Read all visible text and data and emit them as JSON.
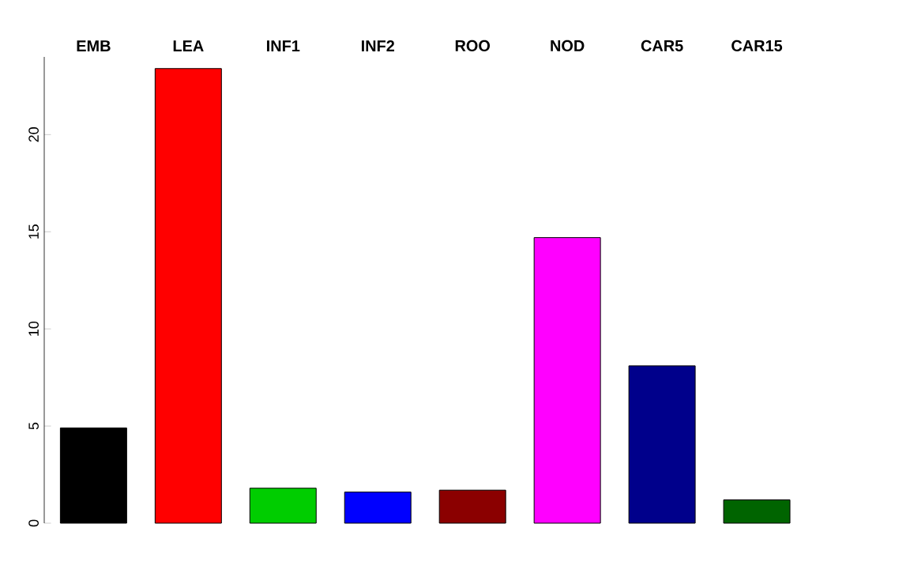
{
  "chart_data": {
    "type": "bar",
    "categories": [
      "EMB",
      "LEA",
      "INF1",
      "INF2",
      "ROO",
      "NOD",
      "CAR5",
      "CAR15"
    ],
    "values": [
      4.9,
      23.4,
      1.8,
      1.6,
      1.7,
      14.7,
      8.1,
      1.2
    ],
    "colors": [
      "#000000",
      "#ff0000",
      "#00cd00",
      "#0000ff",
      "#8b0000",
      "#ff00ff",
      "#00008b",
      "#006400"
    ],
    "ylim": [
      0,
      24
    ],
    "yticks": [
      0,
      5,
      10,
      15,
      20
    ]
  }
}
